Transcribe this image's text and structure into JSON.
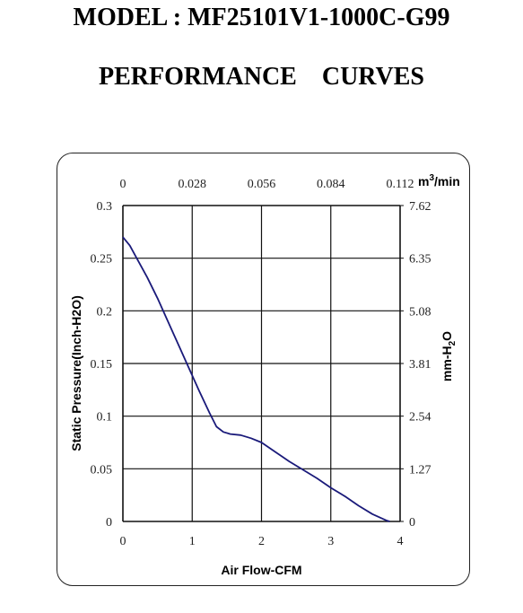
{
  "header": {
    "model": "MODEL : MF25101V1-1000C-G99",
    "subtitle": "PERFORMANCE    CURVES"
  },
  "chart_data": {
    "type": "line",
    "xlabel": "Air Flow-CFM",
    "ylabel": "Static Pressure(Inch-H2O)",
    "y2label": "mm-H2O",
    "x2label": "m³/min",
    "xlim": [
      0,
      4
    ],
    "ylim": [
      0,
      0.3
    ],
    "grid": true,
    "x_ticks": [
      "0",
      "1",
      "2",
      "3",
      "4"
    ],
    "y_ticks": [
      "0",
      "0.05",
      "0.1",
      "0.15",
      "0.2",
      "0.25",
      "0.3"
    ],
    "x2_ticks": [
      "0",
      "0.028",
      "0.056",
      "0.084",
      "0.112"
    ],
    "y2_ticks": [
      "0",
      "1.27",
      "2.54",
      "3.81",
      "5.08",
      "6.35",
      "7.62"
    ],
    "series_color": "#1a1a7a",
    "series": [
      {
        "x": [
          0,
          0.1,
          0.2,
          0.35,
          0.5,
          0.65,
          0.8,
          0.95,
          1.1,
          1.25,
          1.35,
          1.45,
          1.55,
          1.7,
          1.85,
          2.0,
          2.2,
          2.4,
          2.6,
          2.8,
          3.0,
          3.2,
          3.4,
          3.6,
          3.8,
          3.85
        ],
        "y": [
          0.27,
          0.262,
          0.25,
          0.232,
          0.212,
          0.19,
          0.168,
          0.146,
          0.124,
          0.103,
          0.09,
          0.085,
          0.083,
          0.082,
          0.079,
          0.075,
          0.066,
          0.057,
          0.049,
          0.041,
          0.032,
          0.024,
          0.015,
          0.007,
          0.001,
          0
        ]
      }
    ]
  }
}
